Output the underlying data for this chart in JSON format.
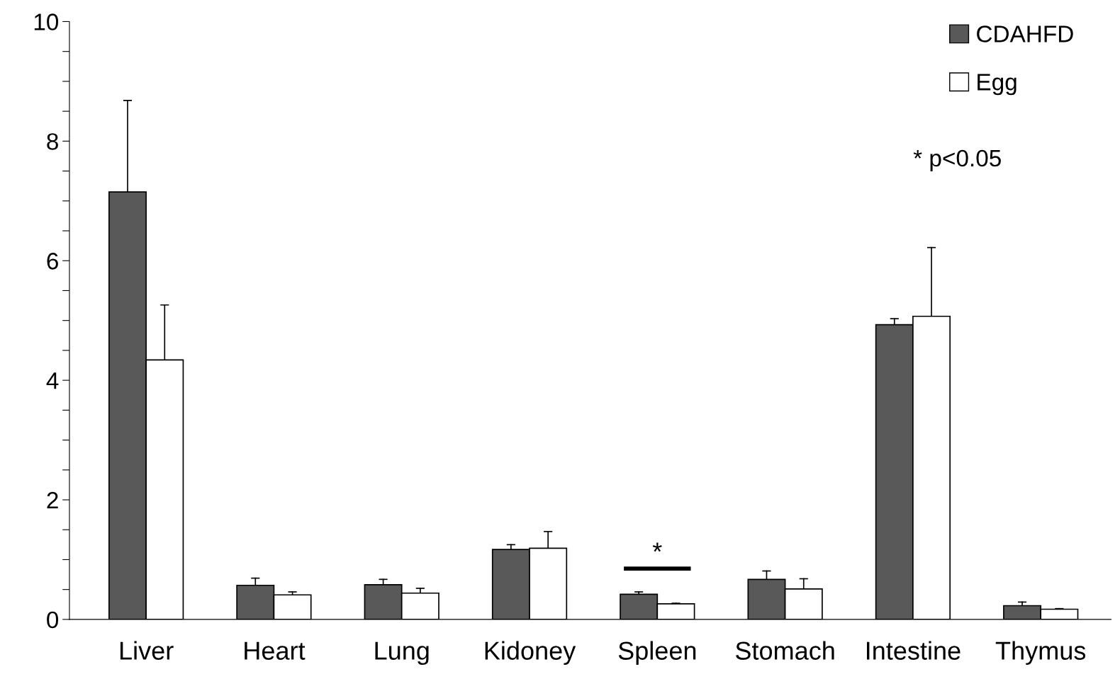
{
  "chart_data": {
    "type": "bar",
    "categories": [
      "Liver",
      "Heart",
      "Lung",
      "Kidoney",
      "Spleen",
      "Stomach",
      "Intestine",
      "Thymus"
    ],
    "series": [
      {
        "name": "CDAHFD",
        "color": "#595959",
        "values": [
          7.15,
          0.57,
          0.58,
          1.17,
          0.42,
          0.67,
          4.93,
          0.23
        ],
        "errors": [
          [
            7.15,
            8.68
          ],
          [
            0.57,
            0.69
          ],
          [
            0.58,
            0.67
          ],
          [
            1.17,
            1.25
          ],
          [
            0.42,
            0.46
          ],
          [
            0.67,
            0.81
          ],
          [
            4.93,
            5.03
          ],
          [
            0.23,
            0.29
          ]
        ]
      },
      {
        "name": "Egg",
        "color": "#ffffff",
        "values": [
          4.34,
          0.41,
          0.44,
          1.19,
          0.26,
          0.51,
          5.07,
          0.17
        ],
        "errors": [
          [
            4.34,
            5.26
          ],
          [
            0.41,
            0.46
          ],
          [
            0.44,
            0.52
          ],
          [
            1.19,
            1.47
          ],
          [
            0.26,
            0.27
          ],
          [
            0.51,
            0.68
          ],
          [
            5.07,
            6.22
          ],
          [
            0.17,
            0.18
          ]
        ]
      }
    ],
    "ylim": [
      0,
      10
    ],
    "yticks": [
      0,
      {
        "value": 0.5,
        "label": null
      },
      {
        "value": 1,
        "label": null
      },
      {
        "value": 1.5,
        "label": null
      },
      2,
      {
        "value": 2.5,
        "label": null
      },
      {
        "value": 3,
        "label": null
      },
      {
        "value": 3.5,
        "label": null
      },
      4,
      {
        "value": 4.5,
        "label": null
      },
      {
        "value": 5,
        "label": null
      },
      {
        "value": 5.5,
        "label": null
      },
      6,
      {
        "value": 6.5,
        "label": null
      },
      {
        "value": 7,
        "label": null
      },
      {
        "value": 7.5,
        "label": null
      },
      8,
      {
        "value": 8.5,
        "label": null
      },
      {
        "value": 9,
        "label": null
      },
      {
        "value": 9.5,
        "label": null
      },
      10
    ],
    "annotations": [
      "*",
      "* p<0.05"
    ],
    "legend": "top right",
    "grid": false
  }
}
